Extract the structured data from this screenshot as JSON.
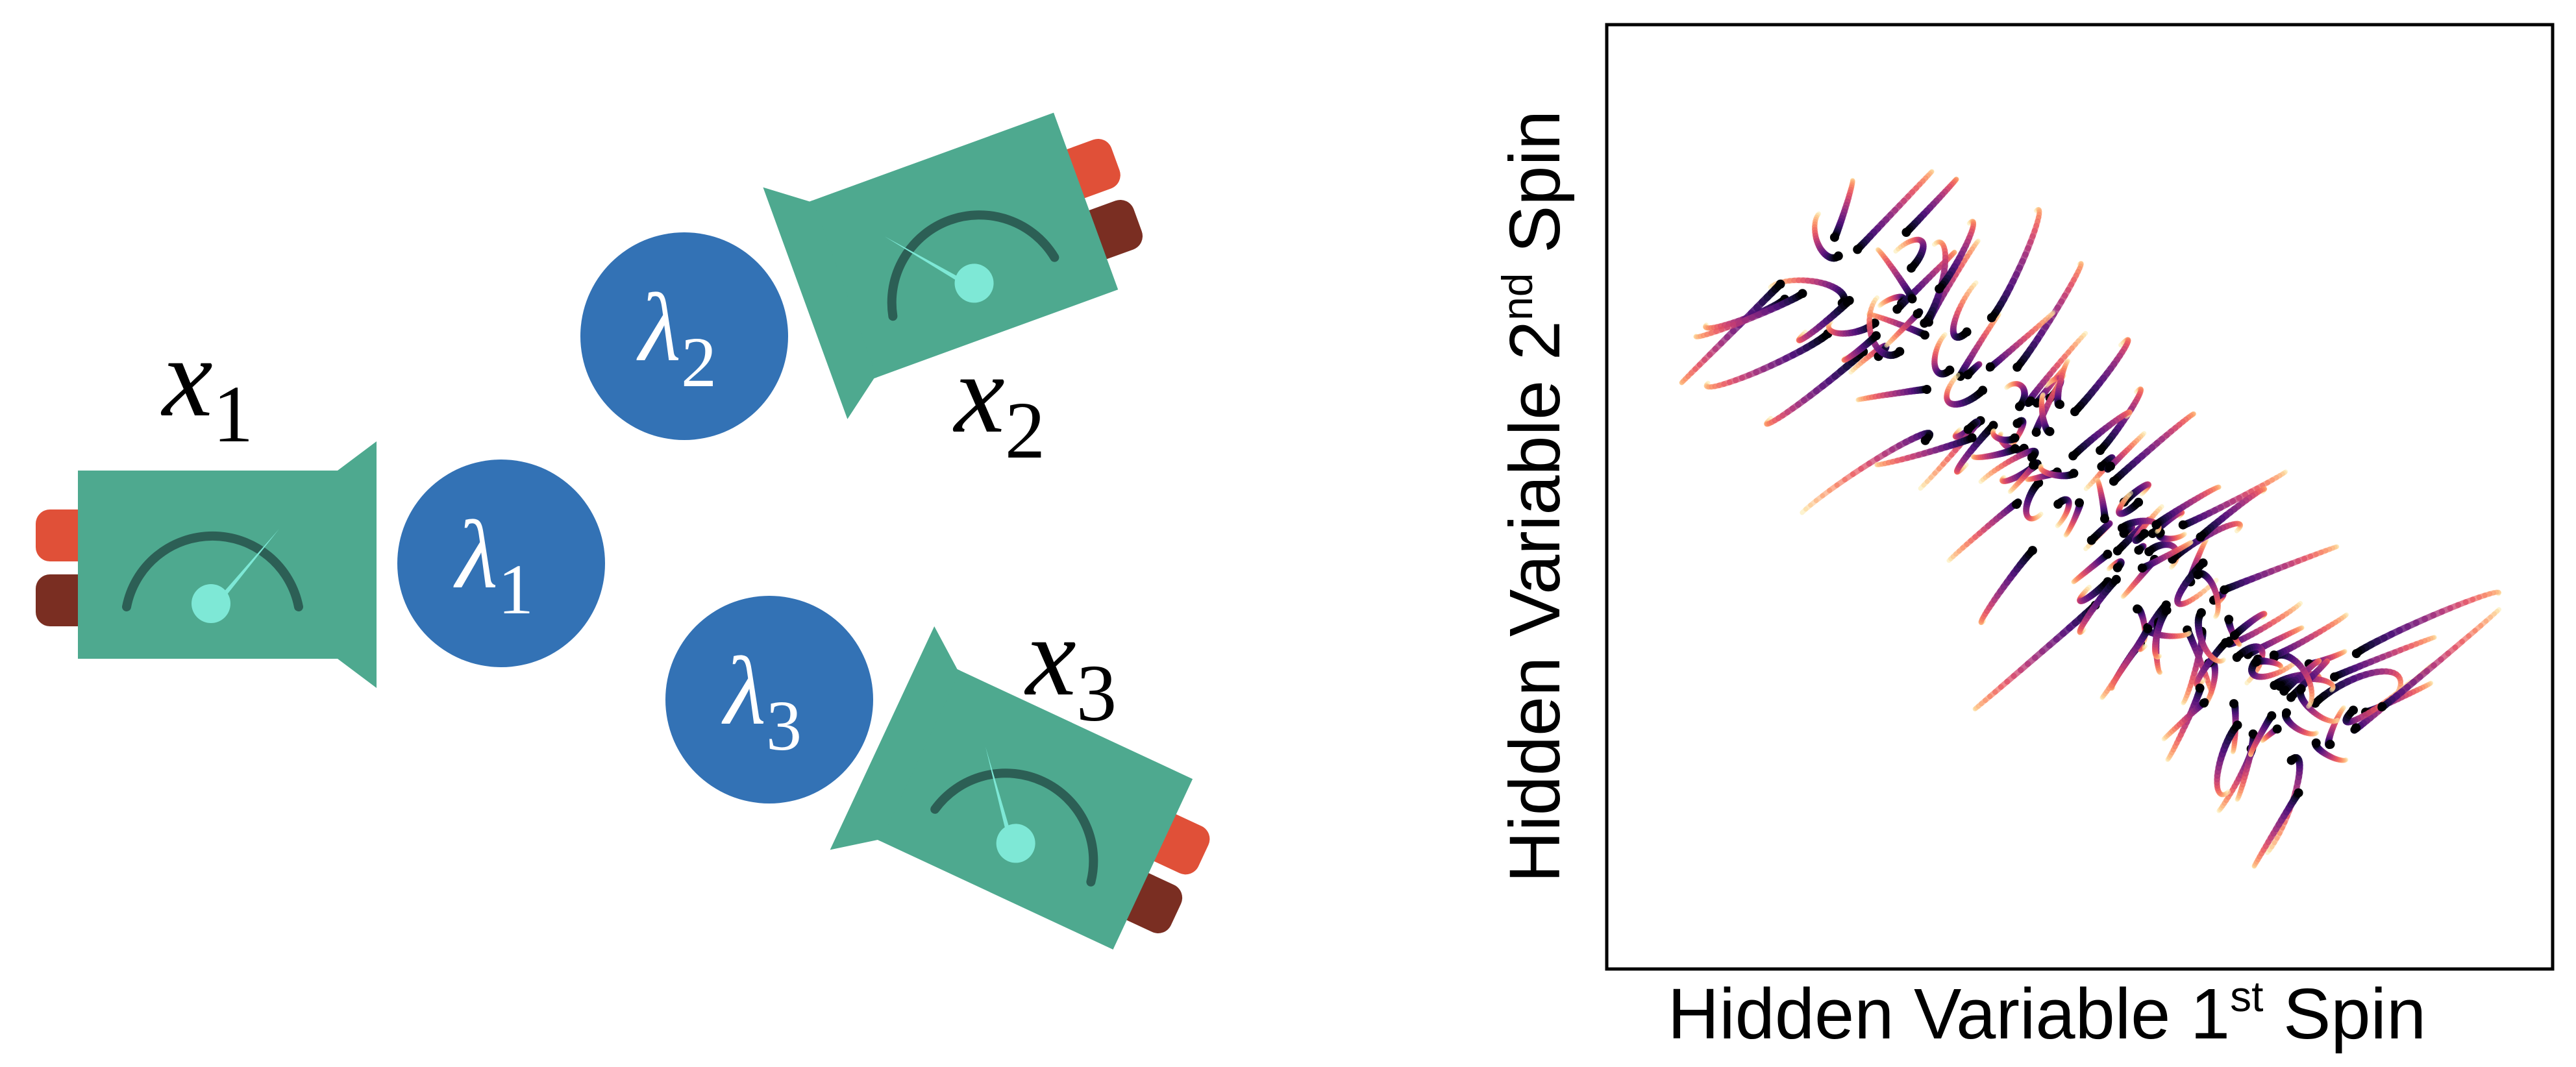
{
  "diagram": {
    "detectors": [
      {
        "id": "detector-1",
        "label_var": "x",
        "label_sub": "1"
      },
      {
        "id": "detector-2",
        "label_var": "x",
        "label_sub": "2"
      },
      {
        "id": "detector-3",
        "label_var": "x",
        "label_sub": "3"
      }
    ],
    "hidden_variables": [
      {
        "id": "lambda-1",
        "symbol": "λ",
        "sub": "1"
      },
      {
        "id": "lambda-2",
        "symbol": "λ",
        "sub": "2"
      },
      {
        "id": "lambda-3",
        "symbol": "λ",
        "sub": "3"
      }
    ],
    "colors": {
      "detector_body": "#4EA98F",
      "dial": "#2C5F55",
      "needle": "#7EE8D6",
      "button_top": "#E05038",
      "button_bottom": "#7A2E22",
      "lambda_circle": "#3372B5"
    }
  },
  "chart_data": {
    "type": "scatter",
    "description_kind": "trajectories",
    "xlabel_main": "Hidden Variable 1",
    "xlabel_sup": "st",
    "xlabel_tail": " Spin",
    "ylabel_main": "Hidden Variable 2",
    "ylabel_sup": "nd",
    "ylabel_tail": " Spin",
    "xlim": [
      -1,
      1
    ],
    "ylim": [
      -1,
      1
    ],
    "grid": false,
    "ticks": false,
    "colormap": [
      "#FCFDBF",
      "#FEC287",
      "#FB8761",
      "#E85362",
      "#B73779",
      "#832681",
      "#51127C",
      "#1D1147",
      "#000004"
    ],
    "trend": {
      "slope": -1.0,
      "along_halfwidth": 0.78,
      "perp_spread": 0.16
    },
    "n_trajectories": 140
  }
}
